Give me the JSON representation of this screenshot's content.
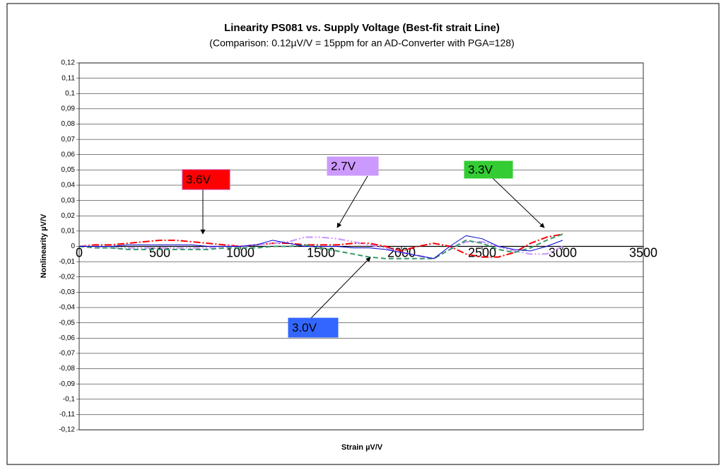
{
  "chart_data": {
    "type": "line",
    "title": "Linearity PS081 vs. Supply Voltage (Best-fit strait Line)",
    "subtitle": "(Comparison: 0.12µV/V = 15ppm for an AD-Converter with PGA=128)",
    "x_label": "Strain µV/V",
    "y_label": "Nonlinearity µV/V",
    "x": [
      0,
      100,
      200,
      300,
      400,
      500,
      600,
      700,
      800,
      900,
      1000,
      1100,
      1200,
      1300,
      1400,
      1500,
      1600,
      1700,
      1800,
      1900,
      2000,
      2100,
      2200,
      2300,
      2400,
      2500,
      2600,
      2700,
      2800,
      2900,
      3000
    ],
    "series": [
      {
        "name": "3.6V",
        "color": "#ff0000",
        "values": [
          0,
          0.001,
          0.001,
          0.002,
          0.003,
          0.004,
          0.004,
          0.003,
          0.002,
          0.001,
          0,
          0.001,
          0.002,
          0.002,
          0.001,
          0.001,
          0.001,
          0.002,
          0.002,
          0,
          -0.003,
          0,
          0.002,
          0,
          -0.005,
          -0.007,
          -0.007,
          -0.004,
          0.002,
          0.006,
          0.008
        ]
      },
      {
        "name": "2.7V",
        "color": "#cc99ff",
        "values": [
          0,
          0,
          -0.001,
          -0.001,
          -0.001,
          -0.001,
          -0.001,
          -0.001,
          -0.001,
          0,
          0,
          0.001,
          0.002,
          0.003,
          0.006,
          0.006,
          0.005,
          0.003,
          0.001,
          -0.001,
          -0.004,
          -0.006,
          -0.008,
          -0.002,
          0.003,
          0.003,
          0,
          -0.003,
          -0.005,
          -0.005,
          0
        ]
      },
      {
        "name": "3.3V",
        "color": "#339966",
        "values": [
          0,
          -0.001,
          -0.001,
          -0.002,
          -0.002,
          -0.002,
          -0.002,
          -0.002,
          -0.002,
          -0.001,
          -0.001,
          -0.001,
          0,
          0,
          0.001,
          -0.001,
          -0.003,
          -0.005,
          -0.007,
          -0.008,
          -0.008,
          -0.008,
          -0.008,
          -0.002,
          0.004,
          0.002,
          -0.002,
          -0.004,
          -0.001,
          0.004,
          0.008
        ]
      },
      {
        "name": "3.0V",
        "color": "#0000cc",
        "values": [
          0,
          0,
          0,
          0.001,
          0.001,
          0.001,
          0.001,
          0.001,
          0,
          0,
          0,
          0.001,
          0.004,
          0.002,
          0,
          0,
          0,
          -0.001,
          -0.001,
          -0.002,
          -0.004,
          -0.006,
          -0.008,
          0,
          0.007,
          0.005,
          0,
          -0.002,
          -0.003,
          0,
          0.004
        ]
      }
    ],
    "xlim": [
      0,
      3500
    ],
    "xticks": [
      0,
      500,
      1000,
      1500,
      2000,
      2500,
      3000,
      3500
    ],
    "ylim": [
      -0.12,
      0.12
    ],
    "yticks": [
      {
        "value": -0.12,
        "label": "-0,12"
      },
      {
        "value": -0.11,
        "label": "-0,11"
      },
      {
        "value": -0.1,
        "label": "-0,1"
      },
      {
        "value": -0.09,
        "label": "-0,09"
      },
      {
        "value": -0.08,
        "label": "-0,08"
      },
      {
        "value": -0.07,
        "label": "-0,07"
      },
      {
        "value": -0.06,
        "label": "-0,06"
      },
      {
        "value": -0.05,
        "label": "-0,05"
      },
      {
        "value": -0.04,
        "label": "-0,04"
      },
      {
        "value": -0.03,
        "label": "-0,03"
      },
      {
        "value": -0.02,
        "label": "-0,02"
      },
      {
        "value": -0.01,
        "label": "-0,01"
      },
      0,
      {
        "value": 0.01,
        "label": "0,01"
      },
      {
        "value": 0.02,
        "label": "0,02"
      },
      {
        "value": 0.03,
        "label": "0,03"
      },
      {
        "value": 0.04,
        "label": "0,04"
      },
      {
        "value": 0.05,
        "label": "0,05"
      },
      {
        "value": 0.06,
        "label": "0,06"
      },
      {
        "value": 0.07,
        "label": "0,07"
      },
      {
        "value": 0.08,
        "label": "0,08"
      },
      {
        "value": 0.09,
        "label": "0,09"
      },
      {
        "value": 0.1,
        "label": "0,1"
      },
      {
        "value": 0.11,
        "label": "0,11"
      },
      {
        "value": 0.12,
        "label": "0,12"
      }
    ],
    "grid": true
  }
}
